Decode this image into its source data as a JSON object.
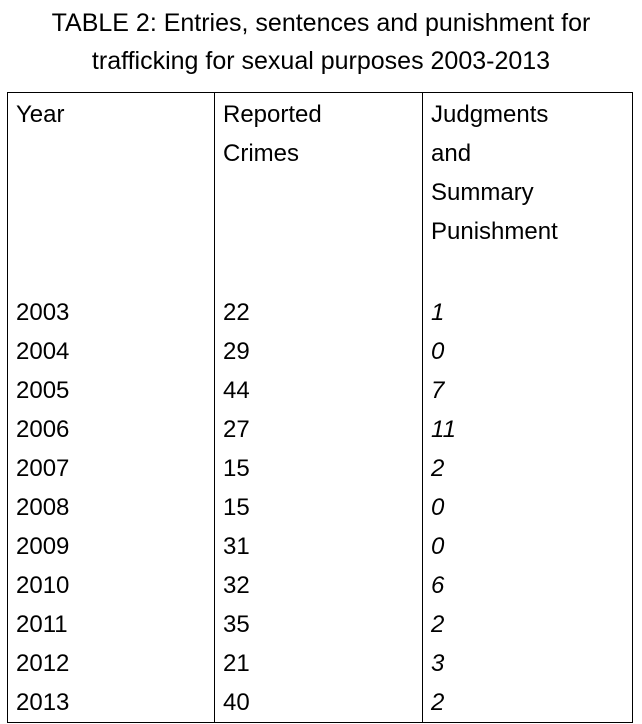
{
  "title": [
    "TABLE 2: Entries, sentences and punishment for",
    "trafficking for sexual purposes 2003-2013"
  ],
  "table": {
    "header": [
      [
        "Year"
      ],
      [
        "Reported",
        "Crimes"
      ],
      [
        "Judgments",
        "and",
        "Summary",
        "Punishment"
      ]
    ],
    "rows": [
      [
        2003,
        22,
        1
      ],
      [
        2004,
        29,
        0
      ],
      [
        2005,
        44,
        7
      ],
      [
        2006,
        27,
        11
      ],
      [
        2007,
        15,
        2
      ],
      [
        2008,
        15,
        0
      ],
      [
        2009,
        31,
        0
      ],
      [
        2010,
        32,
        6
      ],
      [
        2011,
        35,
        2
      ],
      [
        2012,
        21,
        3
      ],
      [
        2013,
        40,
        2
      ]
    ]
  }
}
